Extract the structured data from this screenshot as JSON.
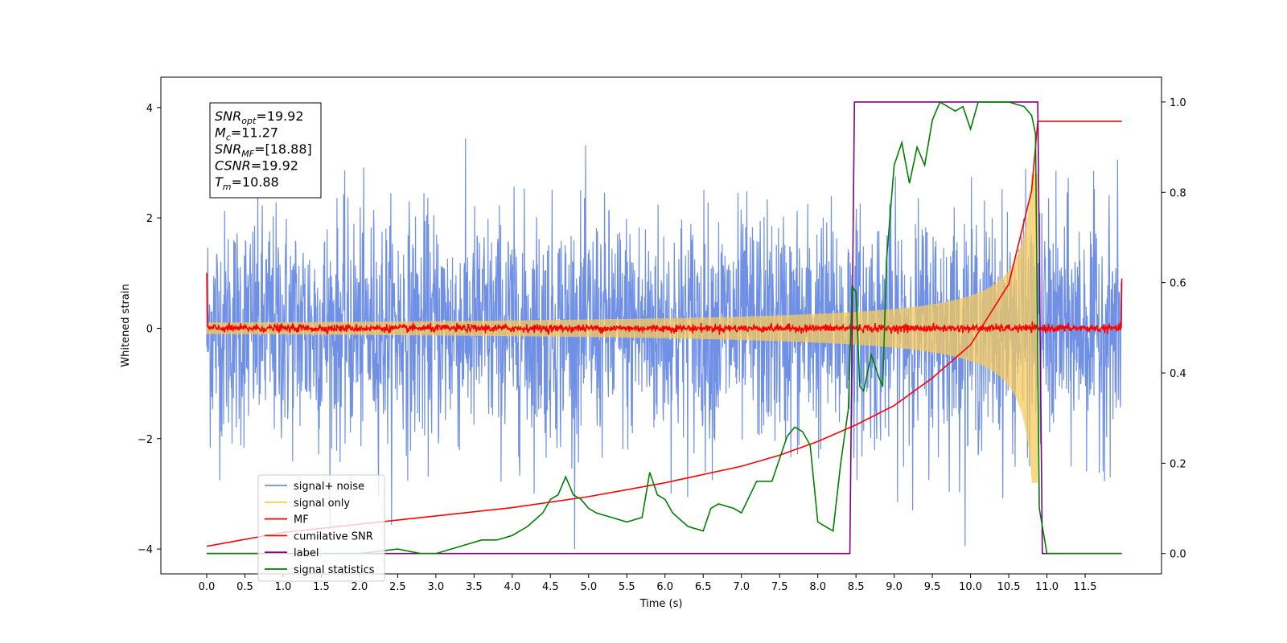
{
  "chart_data": {
    "type": "line",
    "xlabel": "Time (s)",
    "ylabel": "Whitened strain",
    "xlim": [
      -0.6,
      12.5
    ],
    "ylim": [
      -4.45,
      4.55
    ],
    "y2lim": [
      -0.045,
      1.055
    ],
    "xticks": [
      0.0,
      0.5,
      1.0,
      1.5,
      2.0,
      2.5,
      3.0,
      3.5,
      4.0,
      4.5,
      5.0,
      5.5,
      6.0,
      6.5,
      7.0,
      7.5,
      8.0,
      8.5,
      9.0,
      9.5,
      10.0,
      10.5,
      11.0,
      11.5
    ],
    "xtick_labels": [
      "0.0",
      "0.5",
      "1.0",
      "1.5",
      "2.0",
      "2.5",
      "3.0",
      "3.5",
      "4.0",
      "4.5",
      "5.0",
      "5.5",
      "6.0",
      "6.5",
      "7.0",
      "7.5",
      "8.0",
      "8.5",
      "9.0",
      "9.5",
      "10.0",
      "10.5",
      "11.0",
      "11.5"
    ],
    "yticks": [
      -4,
      -2,
      0,
      2,
      4
    ],
    "ytick_labels": [
      "−4",
      "−2",
      "0",
      "2",
      "4"
    ],
    "y2ticks": [
      0.0,
      0.2,
      0.4,
      0.6,
      0.8,
      1.0
    ],
    "y2tick_labels": [
      "0.0",
      "0.2",
      "0.4",
      "0.6",
      "0.8",
      "1.0"
    ],
    "grid": false,
    "legend_position": "lower-left",
    "info_box": [
      {
        "name": "SNR",
        "sub": "opt",
        "value": "=19.92"
      },
      {
        "name": "M",
        "sub": "c",
        "value": "=11.27"
      },
      {
        "name": "SNR",
        "sub": "MF",
        "value": "=[18.88]"
      },
      {
        "name": "CSNR",
        "sub": "",
        "value": "=19.92"
      },
      {
        "name": "T",
        "sub": "m",
        "value": "=10.88"
      }
    ],
    "series": [
      {
        "name": "signal+ noise",
        "color": "#7090e6",
        "axis": "left",
        "description_values": {
          "x_start": 0.0,
          "x_end": 11.98,
          "noise_sigma": 1.0
        }
      },
      {
        "name": "signal only",
        "color": "#f5c95c",
        "axis": "left",
        "description_values": {
          "x_start": 0.0,
          "x_end": 11.98,
          "coalescence_time": 10.88,
          "peak_amplitude": 2.8
        }
      },
      {
        "name": "MF",
        "color": "#ff0000",
        "axis": "left",
        "description_values": {
          "x_start": 0.0,
          "x_end": 11.98,
          "start_value": 1.0,
          "end_value": 0.9
        }
      },
      {
        "name": "cumilative SNR",
        "color": "#ff0000",
        "axis": "left",
        "x": [
          0.0,
          1.0,
          2.0,
          3.0,
          4.0,
          5.0,
          6.0,
          7.0,
          7.5,
          8.0,
          8.5,
          9.0,
          9.5,
          10.0,
          10.5,
          10.8,
          10.88,
          11.98
        ],
        "y": [
          -3.95,
          -3.7,
          -3.55,
          -3.4,
          -3.25,
          -3.05,
          -2.8,
          -2.5,
          -2.3,
          -2.05,
          -1.75,
          -1.4,
          -0.9,
          -0.3,
          0.8,
          2.5,
          3.75,
          3.75
        ]
      },
      {
        "name": "label",
        "color": "#800080",
        "axis": "right",
        "x": [
          0.0,
          8.42,
          8.48,
          10.88,
          10.94,
          11.98
        ],
        "y": [
          0.0,
          0.0,
          1.0,
          1.0,
          0.0,
          0.0
        ]
      },
      {
        "name": "signal statistics",
        "color": "#008000",
        "axis": "right",
        "x": [
          0.0,
          0.5,
          1.0,
          1.5,
          2.0,
          2.5,
          2.8,
          3.0,
          3.2,
          3.4,
          3.6,
          3.8,
          4.0,
          4.2,
          4.4,
          4.5,
          4.6,
          4.7,
          4.8,
          4.9,
          5.0,
          5.1,
          5.3,
          5.5,
          5.7,
          5.8,
          5.9,
          6.0,
          6.1,
          6.3,
          6.5,
          6.6,
          6.7,
          6.9,
          7.0,
          7.2,
          7.4,
          7.6,
          7.7,
          7.8,
          7.9,
          8.0,
          8.1,
          8.2,
          8.3,
          8.4,
          8.45,
          8.5,
          8.55,
          8.6,
          8.7,
          8.8,
          8.85,
          8.9,
          9.0,
          9.1,
          9.2,
          9.3,
          9.4,
          9.5,
          9.6,
          9.7,
          9.8,
          9.9,
          10.0,
          10.1,
          10.3,
          10.5,
          10.7,
          10.8,
          10.85,
          10.9,
          11.0,
          11.98
        ],
        "y": [
          0.0,
          0.0,
          0.0,
          0.0,
          0.0,
          0.01,
          0.0,
          0.0,
          0.01,
          0.02,
          0.03,
          0.03,
          0.04,
          0.06,
          0.09,
          0.12,
          0.13,
          0.17,
          0.13,
          0.12,
          0.1,
          0.09,
          0.08,
          0.07,
          0.08,
          0.18,
          0.13,
          0.12,
          0.09,
          0.06,
          0.05,
          0.1,
          0.11,
          0.1,
          0.09,
          0.16,
          0.16,
          0.26,
          0.28,
          0.27,
          0.24,
          0.07,
          0.06,
          0.05,
          0.2,
          0.32,
          0.59,
          0.58,
          0.37,
          0.36,
          0.44,
          0.39,
          0.37,
          0.65,
          0.86,
          0.91,
          0.82,
          0.9,
          0.86,
          0.96,
          1.0,
          0.99,
          0.98,
          0.99,
          0.94,
          1.0,
          1.0,
          1.0,
          0.99,
          0.97,
          0.93,
          0.1,
          0.0,
          0.0
        ]
      }
    ]
  }
}
